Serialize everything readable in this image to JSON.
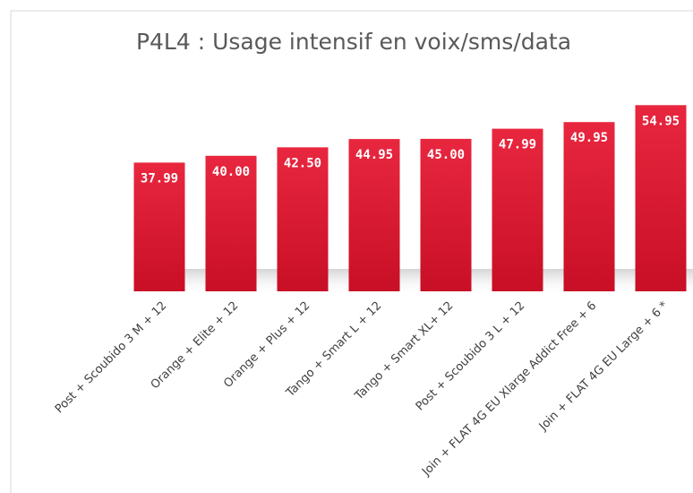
{
  "chart_data": {
    "type": "bar",
    "title": "P4L4 : Usage intensif en voix/sms/data",
    "categories": [
      "Post + Scoubido 3 M + 12",
      "Orange + Elite + 12",
      "Orange + Plus + 12",
      "Tango + Smart L + 12",
      "Tango + Smart XL+ 12",
      "Post + Scoubido 3 L + 12",
      "Join + FLAT 4G EU Xlarge Addict Free + 6",
      "Join + FLAT 4G EU Large + 6 *"
    ],
    "values": [
      37.99,
      40,
      42.5,
      44.95,
      45,
      47.99,
      49.95,
      54.95
    ],
    "value_labels": [
      "37.99",
      "40.00",
      "42.50",
      "44.95",
      "45.00",
      "47.99",
      "49.95",
      "54.95"
    ],
    "color": "#d7182f"
  }
}
